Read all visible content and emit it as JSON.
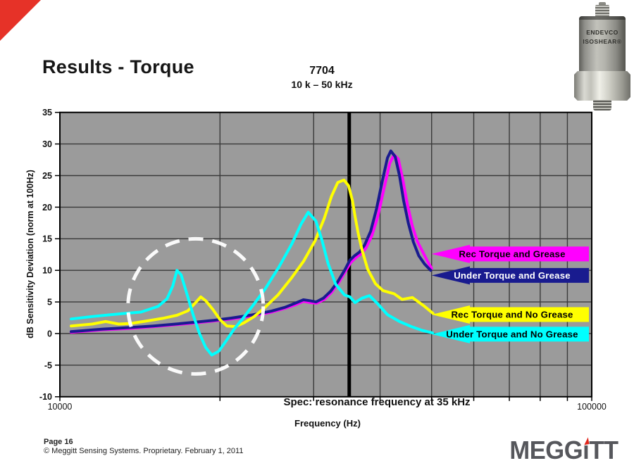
{
  "slide": {
    "title": "Results - Torque",
    "corner_color": "#e63228",
    "footer": {
      "page_label": "Page 16",
      "copyright": "© Meggitt Sensing Systems. Proprietary. February 1, 2011"
    },
    "logo": {
      "part1": "MEGG",
      "part2": "ı",
      "part3": "TT",
      "text_color": "#56575c",
      "accent_color": "#e1251b"
    },
    "device": {
      "line1": "ENDEVCO",
      "line2": "ISOSHEAR®"
    }
  },
  "chart_data": {
    "type": "line",
    "title": "7704",
    "subtitle": "10 k – 50 kHz",
    "xlabel": "Frequency (Hz)",
    "ylabel": "dB Sensitivity Deviation (norm at 100Hz)",
    "x_scale": "log",
    "x_min": 10000,
    "x_max": 100000,
    "x_tick_labels": [
      "10000",
      "100000"
    ],
    "x_gridlines_hz": [
      20000,
      30000,
      40000,
      50000,
      60000,
      70000,
      80000,
      90000
    ],
    "y_min": -10,
    "y_max": 35,
    "y_tick_step": 5,
    "y_ticks": [
      35,
      30,
      25,
      20,
      15,
      10,
      5,
      0,
      -5,
      -10
    ],
    "plot_bg": "#9b9b9b",
    "grid_color": "#3a3a3a",
    "grid_on": true,
    "spec_line": {
      "hz": 35000,
      "label": "Spec: resonance frequency at 35 kHz",
      "color": "#000000"
    },
    "annotation_circle": {
      "center_hz": 18000,
      "center_db": 4.3,
      "radius_px": 96,
      "color": "#ffffff",
      "style": "dashed"
    },
    "legend": {
      "position": "right-inside",
      "arrow_tip_hz": 50000,
      "arrow_head_hz": 59000
    },
    "series": [
      {
        "name": "Rec Torque and Grease",
        "color": "#ff00ff",
        "label_text_color": "#000000",
        "label_db": 12.6,
        "points": [
          [
            10500,
            0.2
          ],
          [
            12000,
            0.6
          ],
          [
            13500,
            0.8
          ],
          [
            15000,
            1.1
          ],
          [
            16500,
            1.4
          ],
          [
            18000,
            1.7
          ],
          [
            19500,
            2.0
          ],
          [
            21000,
            2.3
          ],
          [
            23000,
            2.8
          ],
          [
            25000,
            3.4
          ],
          [
            26500,
            4.0
          ],
          [
            27800,
            4.6
          ],
          [
            28700,
            5.1
          ],
          [
            29600,
            4.9
          ],
          [
            30400,
            4.8
          ],
          [
            31400,
            5.4
          ],
          [
            32400,
            6.5
          ],
          [
            33400,
            8.0
          ],
          [
            34400,
            9.8
          ],
          [
            35200,
            11.2
          ],
          [
            36000,
            12.0
          ],
          [
            36800,
            12.6
          ],
          [
            37600,
            13.5
          ],
          [
            38600,
            15.5
          ],
          [
            39600,
            18.5
          ],
          [
            40700,
            23.0
          ],
          [
            41700,
            26.9
          ],
          [
            42500,
            28.3
          ],
          [
            43300,
            27.6
          ],
          [
            44100,
            24.5
          ],
          [
            45000,
            20.5
          ],
          [
            46000,
            17.0
          ],
          [
            47000,
            14.6
          ],
          [
            48200,
            12.8
          ],
          [
            49300,
            11.2
          ],
          [
            50000,
            10.3
          ]
        ]
      },
      {
        "name": "Under Torque and Grease",
        "color": "#191b8f",
        "label_text_color": "#ffffff",
        "label_db": 9.2,
        "points": [
          [
            10500,
            0.3
          ],
          [
            12000,
            0.7
          ],
          [
            13500,
            0.95
          ],
          [
            15000,
            1.2
          ],
          [
            16500,
            1.5
          ],
          [
            18000,
            1.8
          ],
          [
            19500,
            2.1
          ],
          [
            21000,
            2.45
          ],
          [
            23000,
            2.95
          ],
          [
            25000,
            3.55
          ],
          [
            26500,
            4.15
          ],
          [
            27800,
            4.85
          ],
          [
            28700,
            5.35
          ],
          [
            29500,
            5.2
          ],
          [
            30300,
            5.0
          ],
          [
            31300,
            5.6
          ],
          [
            32300,
            6.7
          ],
          [
            33300,
            8.2
          ],
          [
            34300,
            10.0
          ],
          [
            35100,
            11.6
          ],
          [
            35800,
            12.3
          ],
          [
            36600,
            12.9
          ],
          [
            37400,
            14.0
          ],
          [
            38400,
            16.2
          ],
          [
            39400,
            19.8
          ],
          [
            40400,
            24.2
          ],
          [
            41300,
            27.8
          ],
          [
            41900,
            28.9
          ],
          [
            42700,
            28.0
          ],
          [
            43500,
            25.0
          ],
          [
            44300,
            21.0
          ],
          [
            45200,
            17.5
          ],
          [
            46200,
            14.5
          ],
          [
            47300,
            12.3
          ],
          [
            48500,
            11.0
          ],
          [
            49800,
            10.0
          ]
        ]
      },
      {
        "name": "Rec Torque and No Grease",
        "color": "#ffff00",
        "label_text_color": "#000000",
        "label_db": 3.0,
        "points": [
          [
            10500,
            1.2
          ],
          [
            11500,
            1.5
          ],
          [
            12200,
            1.9
          ],
          [
            12900,
            1.5
          ],
          [
            13600,
            1.6
          ],
          [
            14600,
            2.0
          ],
          [
            15600,
            2.4
          ],
          [
            16600,
            2.9
          ],
          [
            17400,
            3.6
          ],
          [
            18000,
            4.9
          ],
          [
            18400,
            5.8
          ],
          [
            18800,
            5.2
          ],
          [
            19400,
            3.8
          ],
          [
            20000,
            2.2
          ],
          [
            20600,
            1.2
          ],
          [
            21400,
            1.1
          ],
          [
            22200,
            1.7
          ],
          [
            23200,
            2.7
          ],
          [
            24200,
            4.0
          ],
          [
            25700,
            6.1
          ],
          [
            27200,
            8.7
          ],
          [
            28700,
            11.4
          ],
          [
            30200,
            14.7
          ],
          [
            31400,
            18.2
          ],
          [
            32400,
            21.7
          ],
          [
            33300,
            23.9
          ],
          [
            34200,
            24.3
          ],
          [
            34900,
            23.4
          ],
          [
            35500,
            21.0
          ],
          [
            35900,
            18.5
          ],
          [
            36400,
            15.8
          ],
          [
            37000,
            13.2
          ],
          [
            37900,
            10.2
          ],
          [
            39200,
            7.9
          ],
          [
            40500,
            6.8
          ],
          [
            42500,
            6.3
          ],
          [
            44000,
            5.4
          ],
          [
            46000,
            5.7
          ],
          [
            48500,
            4.3
          ],
          [
            50300,
            3.2
          ]
        ]
      },
      {
        "name": "Under Torque and No Grease",
        "color": "#00ffff",
        "label_text_color": "#000000",
        "label_db": -0.1,
        "points": [
          [
            10500,
            2.3
          ],
          [
            11500,
            2.7
          ],
          [
            12500,
            3.0
          ],
          [
            13300,
            3.2
          ],
          [
            14200,
            3.4
          ],
          [
            15300,
            4.3
          ],
          [
            15900,
            5.5
          ],
          [
            16300,
            7.5
          ],
          [
            16600,
            10.0
          ],
          [
            16900,
            9.3
          ],
          [
            17300,
            6.5
          ],
          [
            17800,
            3.0
          ],
          [
            18300,
            0.0
          ],
          [
            18800,
            -2.2
          ],
          [
            19300,
            -3.4
          ],
          [
            19900,
            -2.8
          ],
          [
            20600,
            -1.0
          ],
          [
            21300,
            0.8
          ],
          [
            22000,
            2.2
          ],
          [
            23000,
            4.3
          ],
          [
            24300,
            7.0
          ],
          [
            25800,
            10.5
          ],
          [
            27300,
            14.2
          ],
          [
            28400,
            17.3
          ],
          [
            29300,
            19.2
          ],
          [
            30300,
            17.8
          ],
          [
            31100,
            14.8
          ],
          [
            31900,
            11.2
          ],
          [
            33000,
            7.8
          ],
          [
            34300,
            6.1
          ],
          [
            35100,
            5.8
          ],
          [
            35900,
            4.9
          ],
          [
            37000,
            5.6
          ],
          [
            38200,
            6.0
          ],
          [
            39500,
            4.8
          ],
          [
            41300,
            3.0
          ],
          [
            43500,
            1.9
          ],
          [
            45800,
            1.1
          ],
          [
            48000,
            0.5
          ],
          [
            50200,
            0.1
          ]
        ]
      }
    ]
  }
}
